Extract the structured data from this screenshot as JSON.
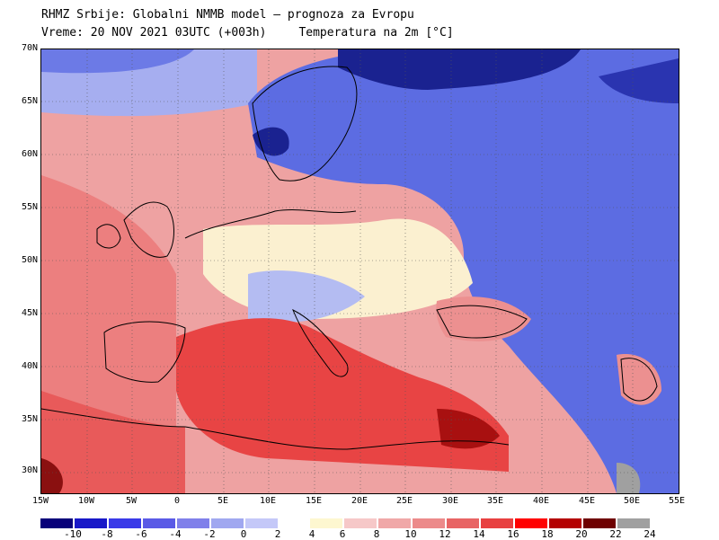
{
  "header": {
    "line1": "RHMZ Srbije: Globalni NMMB model – prognoza za Evropu",
    "line2_time": "Vreme: 20 NOV 2021 03UTC (+003h)",
    "line2_field": "Temperatura na 2m [°C]"
  },
  "map": {
    "lat_labels": [
      "70N",
      "65N",
      "60N",
      "55N",
      "50N",
      "45N",
      "40N",
      "35N",
      "30N"
    ],
    "lon_labels": [
      "15W",
      "10W",
      "5W",
      "0",
      "5E",
      "10E",
      "15E",
      "20E",
      "25E",
      "30E",
      "35E",
      "40E",
      "45E",
      "50E",
      "55E"
    ],
    "lat_range": [
      28,
      70
    ],
    "lon_range": [
      -15,
      55
    ],
    "gridlines": "dotted"
  },
  "colorbar": {
    "labels": [
      "-10",
      "-8",
      "-6",
      "-4",
      "-2",
      "0",
      "2",
      "4",
      "6",
      "8",
      "10",
      "12",
      "14",
      "16",
      "18",
      "20",
      "22",
      "24"
    ],
    "colors": [
      "#08007a",
      "#1818c8",
      "#3a3ae8",
      "#5a5ae6",
      "#8080ea",
      "#a0a8f0",
      "#c4c8f8",
      "#ffffff",
      "#fdf7d0",
      "#f6c8c8",
      "#f0a8a8",
      "#ec8a8a",
      "#e86464",
      "#e84040",
      "#ff0000",
      "#b40000",
      "#6e0000",
      "#a0a0a0"
    ]
  },
  "colors": {
    "warm_sea": "#e83a3a",
    "warm_land": "#ee9a9a",
    "cold": "#5a6ee0",
    "very_cold": "#10188a",
    "mild": "#fdf7d0"
  }
}
